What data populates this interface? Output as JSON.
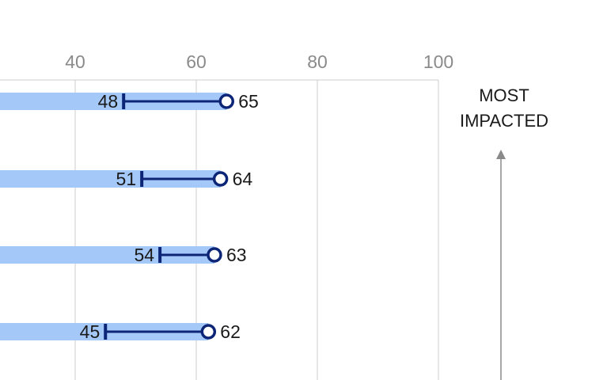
{
  "chart_data": {
    "type": "bar",
    "title": "",
    "xlabel": "",
    "ylabel": "",
    "x_ticks": [
      40,
      60,
      80,
      100
    ],
    "xlim": [
      28,
      100
    ],
    "grid": true,
    "series": [
      {
        "name": "",
        "kind": "bar",
        "values": [
          65,
          64,
          63,
          62
        ]
      },
      {
        "name": "",
        "kind": "range-start",
        "values": [
          48,
          51,
          54,
          45
        ]
      },
      {
        "name": "",
        "kind": "range-end",
        "values": [
          65,
          64,
          63,
          62
        ]
      }
    ],
    "annotation": {
      "line1": "MOST",
      "line2": "IMPACTED",
      "arrow": "up"
    },
    "colors": {
      "bar": "#a4c8f8",
      "range": "#0c2577",
      "grid": "#cccccc",
      "tick": "#8a8a8a",
      "arrow": "#8a8a8a"
    }
  }
}
